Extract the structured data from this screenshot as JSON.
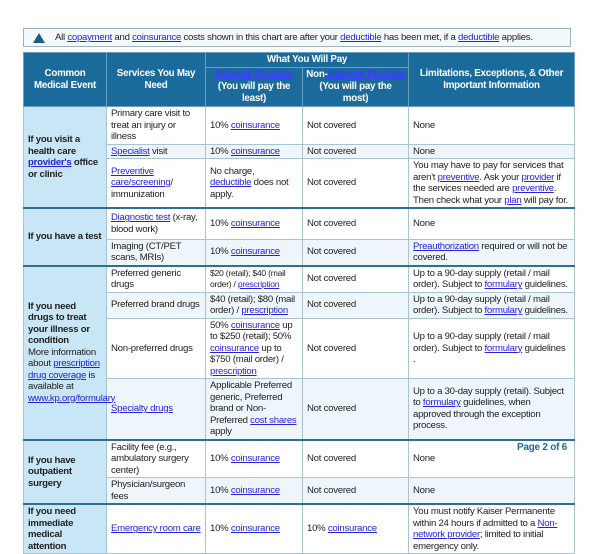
{
  "notice": [
    {
      "t": "All "
    },
    {
      "t": "copayment",
      "link": true
    },
    {
      "t": " and "
    },
    {
      "t": "coinsurance",
      "link": true
    },
    {
      "t": " costs shown in this chart are after your "
    },
    {
      "t": "deductible",
      "link": true
    },
    {
      "t": " has been met, if a "
    },
    {
      "t": "deductible",
      "link": true
    },
    {
      "t": " applies."
    }
  ],
  "header": {
    "event": "Common Medical Event",
    "services": "Services You May Need",
    "pay": "What You Will Pay",
    "network": "Network Provider",
    "network_sub": "(You will pay the least)",
    "non_prefix": "Non-",
    "non_network": "Network Provider",
    "non_sub": "(You will pay the most)",
    "limits": "Limitations, Exceptions, & Other Important Information"
  },
  "groups": [
    {
      "event": [
        {
          "t": "If you visit a health care "
        },
        {
          "t": "provider's",
          "link": true
        },
        {
          "t": " office or clinic"
        }
      ],
      "rows": [
        {
          "service": [
            {
              "t": "Primary care visit to treat an injury or illness"
            }
          ],
          "network": [
            {
              "t": "10% "
            },
            {
              "t": "coinsurance",
              "link": true
            }
          ],
          "non_network": [
            {
              "t": "Not covered"
            }
          ],
          "limits": [
            {
              "t": "None"
            }
          ]
        },
        {
          "service": [
            {
              "t": "Specialist",
              "link": true
            },
            {
              "t": " visit"
            }
          ],
          "network": [
            {
              "t": "10% "
            },
            {
              "t": "coinsurance",
              "link": true
            }
          ],
          "non_network": [
            {
              "t": "Not covered"
            }
          ],
          "limits": [
            {
              "t": "None"
            }
          ]
        },
        {
          "service": [
            {
              "t": "Preventive care/screening",
              "link": true
            },
            {
              "t": "/ immunization"
            }
          ],
          "network": [
            {
              "t": "No charge, "
            },
            {
              "t": "deductible",
              "link": true
            },
            {
              "t": " does not apply."
            }
          ],
          "non_network": [
            {
              "t": "Not covered"
            }
          ],
          "limits": [
            {
              "t": "You may have to pay for services that aren't "
            },
            {
              "t": "preventive",
              "link": true
            },
            {
              "t": ". Ask your "
            },
            {
              "t": "provider",
              "link": true
            },
            {
              "t": " if the services needed are "
            },
            {
              "t": "preventive",
              "link": true
            },
            {
              "t": ". Then check what your "
            },
            {
              "t": "plan",
              "link": true
            },
            {
              "t": " will pay for."
            }
          ]
        }
      ]
    },
    {
      "event": [
        {
          "t": "If you have a test"
        }
      ],
      "rows": [
        {
          "service": [
            {
              "t": "Diagnostic test",
              "link": true
            },
            {
              "t": " (x-ray, blood work)"
            }
          ],
          "network": [
            {
              "t": "10% "
            },
            {
              "t": "coinsurance",
              "link": true
            }
          ],
          "non_network": [
            {
              "t": "Not covered"
            }
          ],
          "limits": [
            {
              "t": "None"
            }
          ]
        },
        {
          "service": [
            {
              "t": "Imaging (CT/PET scans, MRIs)"
            }
          ],
          "network": [
            {
              "t": "10% "
            },
            {
              "t": "coinsurance",
              "link": true
            }
          ],
          "non_network": [
            {
              "t": "Not covered"
            }
          ],
          "limits": [
            {
              "t": "Preauthorization",
              "link": true
            },
            {
              "t": " required or will not be covered."
            }
          ]
        }
      ]
    },
    {
      "event": [
        {
          "t": "If you need drugs to treat your illness or condition"
        }
      ],
      "event_sub": [
        {
          "t": "More information about "
        },
        {
          "t": "prescription drug coverage",
          "link": true
        },
        {
          "t": " is available at "
        },
        {
          "t": "www.kp.org/formulary",
          "link": true
        }
      ],
      "rows": [
        {
          "service": [
            {
              "t": "Preferred generic drugs"
            }
          ],
          "network_small": true,
          "network": [
            {
              "t": "$20 (retail); $40 (mail order) / "
            },
            {
              "t": "prescription",
              "link": true
            }
          ],
          "non_network": [
            {
              "t": "Not covered"
            }
          ],
          "limits": [
            {
              "t": "Up to a 90-day supply (retail / mail order). Subject to "
            },
            {
              "t": "formulary",
              "link": true
            },
            {
              "t": " guidelines."
            }
          ]
        },
        {
          "service": [
            {
              "t": "Preferred brand drugs"
            }
          ],
          "network": [
            {
              "t": "$40 (retail); $80 (mail order) / "
            },
            {
              "t": "prescription",
              "link": true
            }
          ],
          "non_network": [
            {
              "t": "Not covered"
            }
          ],
          "limits": [
            {
              "t": "Up to a 90-day supply (retail / mail order). Subject to "
            },
            {
              "t": "formulary",
              "link": true
            },
            {
              "t": " guidelines."
            }
          ]
        },
        {
          "service": [
            {
              "t": "Non-preferred drugs"
            }
          ],
          "network": [
            {
              "t": "50% "
            },
            {
              "t": "coinsurance",
              "link": true
            },
            {
              "t": " up to $250 (retail); 50% "
            },
            {
              "t": "coinsurance",
              "link": true
            },
            {
              "t": " up to $750 (mail order) / "
            },
            {
              "t": "prescription",
              "link": true
            }
          ],
          "non_network": [
            {
              "t": "Not covered"
            }
          ],
          "limits": [
            {
              "t": "Up to a 90-day supply (retail / mail order). Subject to "
            },
            {
              "t": "formulary",
              "link": true
            },
            {
              "t": " guidelines ."
            }
          ]
        },
        {
          "service": [
            {
              "t": "Specialty drugs",
              "link": true
            }
          ],
          "network": [
            {
              "t": "Applicable Preferred generic, Preferred brand or Non-Preferred "
            },
            {
              "t": "cost shares",
              "link": true
            },
            {
              "t": " apply"
            }
          ],
          "non_network": [
            {
              "t": "Not covered"
            }
          ],
          "limits": [
            {
              "t": "Up to a 30-day supply (retail). Subject to "
            },
            {
              "t": "formulary",
              "link": true
            },
            {
              "t": " guidelines, when approved through the exception process."
            }
          ]
        }
      ]
    },
    {
      "event": [
        {
          "t": "If you have outpatient surgery"
        }
      ],
      "rows": [
        {
          "service": [
            {
              "t": "Facility fee (e.g., ambulatory surgery center)"
            }
          ],
          "network": [
            {
              "t": "10% "
            },
            {
              "t": "coinsurance",
              "link": true
            }
          ],
          "non_network": [
            {
              "t": "Not covered"
            }
          ],
          "limits": [
            {
              "t": "None"
            }
          ]
        },
        {
          "service": [
            {
              "t": "Physician/surgeon fees"
            }
          ],
          "network": [
            {
              "t": "10% "
            },
            {
              "t": "coinsurance",
              "link": true
            }
          ],
          "non_network": [
            {
              "t": "Not covered"
            }
          ],
          "limits": [
            {
              "t": "None"
            }
          ]
        }
      ]
    },
    {
      "event": [
        {
          "t": "If you need immediate medical attention"
        }
      ],
      "rows": [
        {
          "service": [
            {
              "t": "Emergency room care",
              "link": true
            }
          ],
          "network": [
            {
              "t": "10% "
            },
            {
              "t": "coinsurance",
              "link": true
            }
          ],
          "non_network": [
            {
              "t": "10% "
            },
            {
              "t": "coinsurance",
              "link": true
            }
          ],
          "limits": [
            {
              "t": "You must notify Kaiser Permanente within 24 hours if admitted to a "
            },
            {
              "t": "Non-network provider",
              "link": true
            },
            {
              "t": "; limited to initial emergency only."
            }
          ]
        }
      ]
    }
  ],
  "footer": {
    "page": "Page 2 of 6"
  },
  "colors": {
    "header": "#1a6b9c",
    "event_bg": "#c9e6f6",
    "link": "#2424d8"
  }
}
